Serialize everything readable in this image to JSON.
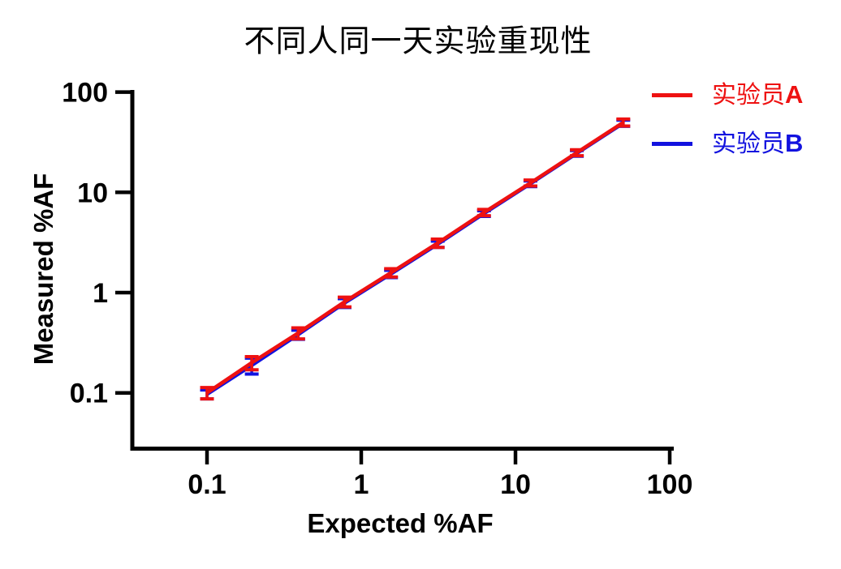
{
  "figure": {
    "background": "#ffffff",
    "axis_color": "#000000"
  },
  "chart_data": {
    "type": "line",
    "title": "不同人同一天实验重现性",
    "xlabel": "Expected %AF",
    "ylabel": "Measured %AF",
    "x_scale": "log",
    "y_scale": "log",
    "xlim": [
      0.03,
      105
    ],
    "ylim": [
      0.027,
      105
    ],
    "x_ticks": [
      0.1,
      1,
      10,
      100
    ],
    "x_tick_labels": [
      "0.1",
      "1",
      "10",
      "100"
    ],
    "y_ticks": [
      0.1,
      1,
      10,
      100
    ],
    "y_tick_labels": [
      "0.1",
      "1",
      "10",
      "100"
    ],
    "grid": false,
    "legend_position": "top-right",
    "error_bars": true,
    "x": [
      0.1,
      0.195,
      0.39,
      0.78,
      1.56,
      3.13,
      6.25,
      12.5,
      25,
      50
    ],
    "series": [
      {
        "name": "实验员A",
        "color": "#EE1111",
        "values": [
          0.1,
          0.2,
          0.395,
          0.81,
          1.58,
          3.12,
          6.3,
          12.4,
          24.9,
          49.8
        ],
        "errors": [
          0.013,
          0.03,
          0.05,
          0.09,
          0.15,
          0.3,
          0.45,
          0.85,
          1.7,
          4.0
        ]
      },
      {
        "name": "实验员B",
        "color": "#1212DF",
        "values": [
          0.097,
          0.188,
          0.382,
          0.79,
          1.54,
          3.04,
          6.15,
          12.2,
          24.5,
          49.0
        ],
        "errors": [
          0.01,
          0.034,
          0.04,
          0.08,
          0.13,
          0.22,
          0.4,
          0.8,
          1.6,
          3.5
        ]
      }
    ]
  },
  "legend": {
    "items": [
      {
        "prefix": "实验员",
        "letter": "A"
      },
      {
        "prefix": "实验员",
        "letter": "B"
      }
    ]
  }
}
